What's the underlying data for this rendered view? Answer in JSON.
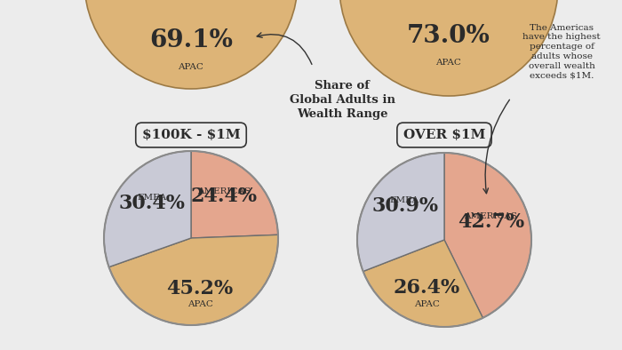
{
  "chart_data": [
    {
      "type": "pie",
      "title": "$100K - $1M",
      "categories": [
        "AMERICAS",
        "APAC",
        "EMEA"
      ],
      "values": [
        24.4,
        45.2,
        30.4
      ],
      "value_labels": [
        "24.4%",
        "45.2%",
        "30.4%"
      ],
      "colors": [
        "#E4A68E",
        "#DDB477",
        "#C9CAD6"
      ],
      "data_labels": true
    },
    {
      "type": "pie",
      "title": "OVER $1M",
      "categories": [
        "AMERICAS",
        "APAC",
        "EMEA"
      ],
      "values": [
        42.7,
        26.4,
        30.9
      ],
      "value_labels": [
        "42.7%",
        "26.4%",
        "30.9%"
      ],
      "colors": [
        "#E4A68E",
        "#DDB477",
        "#C9CAD6"
      ],
      "data_labels": true
    }
  ],
  "partial_pies": [
    {
      "category": "APAC",
      "value": 69.1,
      "value_label": "69.1%",
      "color": "#DDB477"
    },
    {
      "category": "APAC",
      "value": 73.0,
      "value_label": "73.0%",
      "color": "#DDB477"
    }
  ],
  "annotations": [
    "Share of\nGlobal Adults in\nWealth Range",
    "The Americas\nhave the highest\npercentage of\nadults whose\noverall wealth\nexceeds $1M."
  ]
}
